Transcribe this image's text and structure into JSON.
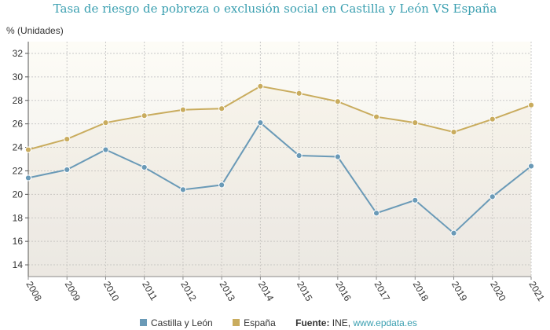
{
  "chart_data": {
    "type": "line",
    "title": "Tasa de riesgo de pobreza o exclusión social en Castilla y León VS España",
    "ylabel": "% (Unidades)",
    "xlabel": "",
    "x": [
      "2008",
      "2009",
      "2010",
      "2011",
      "2012",
      "2013",
      "2014",
      "2015",
      "2016",
      "2017",
      "2018",
      "2019",
      "2020",
      "2021"
    ],
    "ylim": [
      13,
      33
    ],
    "yticks": [
      14,
      16,
      18,
      20,
      22,
      24,
      26,
      28,
      30,
      32
    ],
    "grid": true,
    "legend_placement": "bottom",
    "series": [
      {
        "name": "Castilla y León",
        "color": "#6a9ab7",
        "values": [
          21.4,
          22.1,
          23.8,
          22.3,
          20.4,
          20.8,
          26.1,
          23.3,
          23.2,
          18.4,
          19.5,
          16.7,
          19.8,
          22.4
        ]
      },
      {
        "name": "España",
        "color": "#c9ac5e",
        "values": [
          23.8,
          24.7,
          26.1,
          26.7,
          27.2,
          27.3,
          29.2,
          28.6,
          27.9,
          26.6,
          26.1,
          25.3,
          26.4,
          27.6
        ]
      }
    ]
  },
  "source": {
    "label": "Fuente:",
    "text": "INE,",
    "link": "www.epdata.es"
  }
}
